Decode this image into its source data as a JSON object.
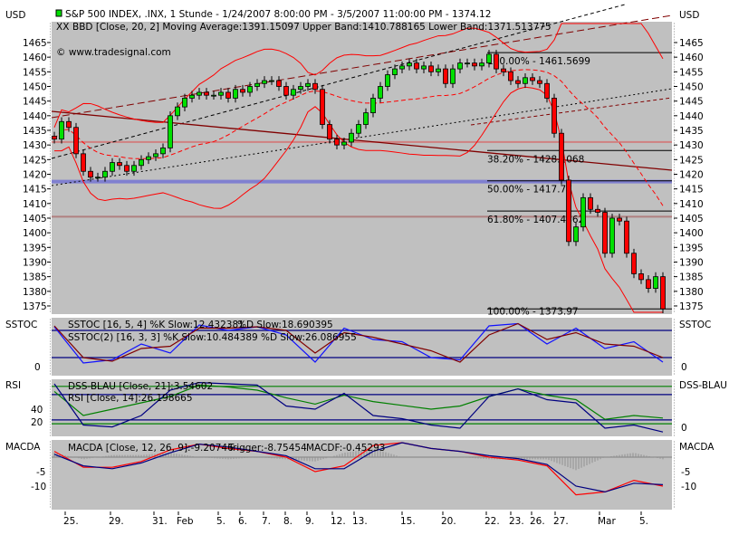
{
  "chart_data": [
    {
      "type": "candlestick",
      "panel": "price",
      "title": "S&P 500 INDEX, .INX, 1 Stunde - 1/24/2007 8:00:00 PM - 3/5/2007 11:00:00 PM - 1374.12",
      "indicator_legend": "BBD [Close, 20, 2] Moving Average:1391.15097 Upper Band:1410.788165 Lower Band:1371.513775",
      "watermark": "© www.tradesignal.com",
      "axis_unit_left": "USD",
      "axis_unit_right": "USD",
      "ylim": [
        1372,
        1472
      ],
      "yticks": [
        1465,
        1460,
        1455,
        1450,
        1445,
        1440,
        1435,
        1430,
        1425,
        1420,
        1415,
        1410,
        1405,
        1400,
        1395,
        1390,
        1385,
        1380,
        1375
      ],
      "closes": [
        1432,
        1438,
        1436,
        1427,
        1421,
        1419,
        1419,
        1421,
        1424,
        1423,
        1421,
        1423,
        1425,
        1426,
        1427,
        1429,
        1440,
        1443,
        1446,
        1447,
        1448,
        1447,
        1447,
        1448,
        1446,
        1449,
        1448,
        1450,
        1451,
        1452,
        1452,
        1450,
        1447,
        1449,
        1450,
        1451,
        1449,
        1437,
        1432,
        1430,
        1431,
        1434,
        1437,
        1441,
        1446,
        1450,
        1454,
        1456,
        1457,
        1458,
        1456,
        1457,
        1455,
        1456,
        1451,
        1456,
        1458,
        1458,
        1457,
        1458,
        1461,
        1456,
        1455,
        1452,
        1451,
        1453,
        1452,
        1451,
        1446,
        1434,
        1418,
        1397,
        1402,
        1412,
        1408,
        1407,
        1393,
        1405,
        1404,
        1393,
        1386,
        1384,
        1381,
        1385,
        1374
      ],
      "fibonacci": [
        {
          "label": "100.00% - 1461.5699",
          "value": 1461.5699
        },
        {
          "label": "38.20% - 1428.1068",
          "value": 1428.1068
        },
        {
          "label": "50.00% - 1417.77",
          "value": 1417.77
        },
        {
          "label": "61.80% - 1407.4362",
          "value": 1407.4362
        },
        {
          "label": "100.00% - 1373.97",
          "value": 1373.97
        }
      ],
      "horizontal_lines": [
        {
          "value": 1431,
          "color": "#d08080"
        },
        {
          "value": 1417.5,
          "color": "#8080d0"
        },
        {
          "value": 1405.5,
          "color": "#b08080"
        }
      ],
      "colors": {
        "up": "#00e000",
        "down": "#ff0000",
        "bands": "#ff0000",
        "background": "#c0c0c0"
      }
    },
    {
      "type": "line",
      "panel": "SSTOC",
      "axis_label_left": "SSTOC",
      "axis_label_right": "SSTOC",
      "yticks": [
        0
      ],
      "ylim": [
        0,
        100
      ],
      "levels": [
        80,
        20
      ],
      "legend": [
        {
          "text": "SSTOC [16, 5, 4] %K Slow:12.432381",
          "color": "#800000"
        },
        {
          "text": "%D Slow:18.690395",
          "color": "#000000"
        },
        {
          "text": "SSTOC(2) [16, 3, 3] %K Slow:10.484389 %D Slow:26.086955",
          "color": "#0000ff"
        }
      ],
      "series": [
        {
          "color": "#1010ff",
          "values": [
            88,
            8,
            15,
            50,
            30,
            92,
            80,
            88,
            70,
            10,
            85,
            60,
            55,
            20,
            15,
            90,
            95,
            50,
            85,
            40,
            55,
            10
          ]
        },
        {
          "color": "#800000",
          "values": [
            90,
            20,
            12,
            40,
            45,
            85,
            85,
            88,
            80,
            30,
            75,
            65,
            50,
            35,
            10,
            70,
            95,
            60,
            75,
            50,
            45,
            20
          ]
        }
      ]
    },
    {
      "type": "line",
      "panel": "RSI",
      "axis_label_left": "RSI",
      "axis_label_right": "DSS-BLAU",
      "yticks_left": [
        40,
        20
      ],
      "yticks_right": [
        0
      ],
      "ylim": [
        0,
        100
      ],
      "levels": [
        {
          "value": 76,
          "color": "#008000"
        },
        {
          "value": 63,
          "color": "#000080"
        },
        {
          "value": 23,
          "color": "#000080"
        },
        {
          "value": 17,
          "color": "#008000"
        }
      ],
      "legend": [
        {
          "text": "DSS-BLAU [Close, 21]:3.54602",
          "color": "#000080"
        },
        {
          "text": "RSI [Close, 14]:26.198665",
          "color": "#008000"
        }
      ],
      "series": [
        {
          "color": "#008000",
          "values": [
            68,
            30,
            40,
            50,
            60,
            78,
            75,
            70,
            58,
            48,
            62,
            52,
            46,
            40,
            45,
            60,
            72,
            62,
            55,
            24,
            30,
            26
          ]
        },
        {
          "color": "#000080",
          "values": [
            80,
            15,
            12,
            30,
            70,
            82,
            80,
            78,
            45,
            40,
            65,
            30,
            25,
            15,
            10,
            60,
            72,
            55,
            50,
            10,
            15,
            4
          ]
        }
      ]
    },
    {
      "type": "line",
      "panel": "MACDA",
      "axis_label_left": "MACDA",
      "axis_label_right": "MACDA",
      "yticks": [
        -5,
        -10
      ],
      "ylim": [
        -17,
        6
      ],
      "legend": [
        {
          "text": "MACDA [Close, 12, 26, 9]:-9.20746",
          "color": "#ff0000"
        },
        {
          "text": "Trigger:-8.75454",
          "color": "#000080"
        },
        {
          "text": "MACDF:-0.45293",
          "color": "#808080"
        }
      ],
      "series": [
        {
          "color": "#ff0000",
          "values": [
            2,
            -3.5,
            -3.5,
            -1.5,
            2.5,
            4.5,
            3,
            2,
            0,
            -5,
            -3,
            4,
            5,
            3,
            2,
            0,
            -1,
            -3,
            -13,
            -12,
            -8,
            -10
          ]
        },
        {
          "color": "#000080",
          "values": [
            1,
            -3,
            -4,
            -2,
            1.5,
            4.5,
            3.5,
            2,
            0.5,
            -4,
            -4,
            2,
            5,
            3,
            2,
            0.5,
            -0.5,
            -2.5,
            -10,
            -12,
            -9,
            -9.5
          ]
        }
      ]
    }
  ],
  "x_axis": {
    "tick_labels": [
      "25.",
      "29.",
      "31.",
      "Feb",
      "5.",
      "6.",
      "7.",
      "8.",
      "9.",
      "12.",
      "13.",
      "15.",
      "20.",
      "22.",
      "23.",
      "26.",
      "27.",
      "Mar",
      "5."
    ]
  }
}
